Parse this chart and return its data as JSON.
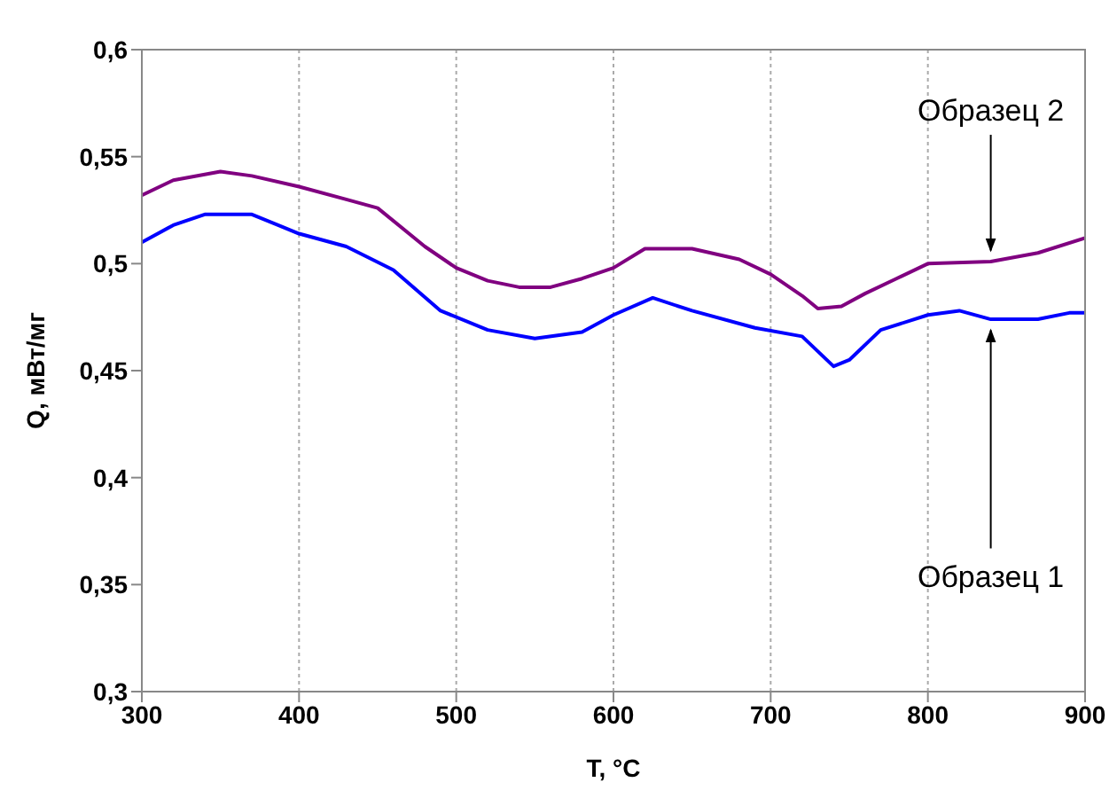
{
  "chart_data": {
    "type": "line",
    "xlabel": "T, °C",
    "ylabel": "Q, мВт/мг",
    "xlim": [
      300,
      900
    ],
    "xticks": [
      300,
      400,
      500,
      600,
      700,
      800,
      900
    ],
    "ylim": [
      0.3,
      0.6
    ],
    "yticks": [
      {
        "value": 0.3,
        "label": "0,3"
      },
      {
        "value": 0.35,
        "label": "0,35"
      },
      {
        "value": 0.4,
        "label": "0,4"
      },
      {
        "value": 0.45,
        "label": "0,45"
      },
      {
        "value": 0.5,
        "label": "0,5"
      },
      {
        "value": 0.55,
        "label": "0,55"
      },
      {
        "value": 0.6,
        "label": "0,6"
      }
    ],
    "grid": "x",
    "legend": false,
    "marker": "none",
    "line_style": "solid",
    "series": [
      {
        "color": "#800080",
        "x": [
          300,
          320,
          350,
          370,
          400,
          430,
          450,
          480,
          500,
          520,
          540,
          560,
          580,
          600,
          620,
          650,
          680,
          700,
          720,
          730,
          745,
          760,
          780,
          800,
          840,
          870,
          900
        ],
        "values": [
          0.532,
          0.539,
          0.543,
          0.541,
          0.536,
          0.53,
          0.526,
          0.508,
          0.498,
          0.492,
          0.489,
          0.489,
          0.493,
          0.498,
          0.507,
          0.507,
          0.502,
          0.495,
          0.485,
          0.479,
          0.48,
          0.486,
          0.493,
          0.5,
          0.501,
          0.505,
          0.512
        ]
      },
      {
        "color": "#0000ff",
        "x": [
          300,
          320,
          340,
          370,
          400,
          430,
          460,
          490,
          520,
          550,
          580,
          600,
          625,
          650,
          690,
          720,
          740,
          750,
          770,
          800,
          820,
          840,
          870,
          890,
          900
        ],
        "values": [
          0.51,
          0.518,
          0.523,
          0.523,
          0.514,
          0.508,
          0.497,
          0.478,
          0.469,
          0.465,
          0.468,
          0.476,
          0.484,
          0.478,
          0.47,
          0.466,
          0.452,
          0.455,
          0.469,
          0.476,
          0.478,
          0.474,
          0.474,
          0.477,
          0.477
        ]
      }
    ],
    "annotations": [
      {
        "text": "Образец 2",
        "x": 840,
        "y": 0.502
      },
      {
        "text": "Образец 1",
        "x": 840,
        "y": 0.473
      }
    ]
  }
}
